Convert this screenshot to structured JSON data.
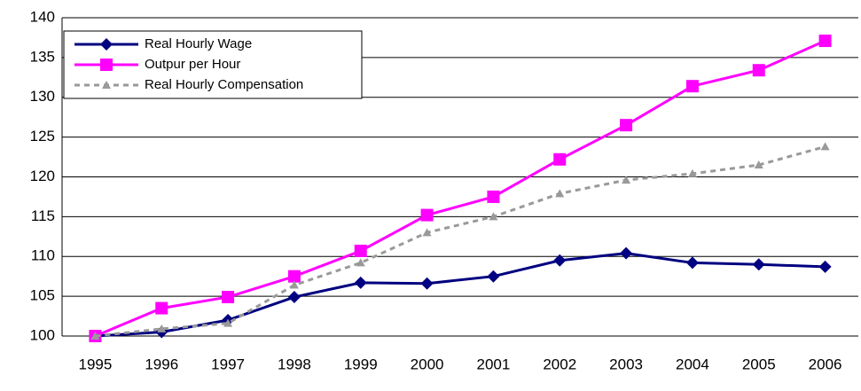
{
  "chart_data": {
    "type": "line",
    "categories": [
      "1995",
      "1996",
      "1997",
      "1998",
      "1999",
      "2000",
      "2001",
      "2002",
      "2003",
      "2004",
      "2005",
      "2006"
    ],
    "series": [
      {
        "name": "Real Hourly Wage",
        "color": "#000080",
        "marker": "diamond",
        "dashed": false,
        "values": [
          100,
          100.5,
          102.0,
          104.9,
          106.7,
          106.6,
          107.5,
          109.5,
          110.4,
          109.2,
          109.0,
          108.7
        ]
      },
      {
        "name": "Outpur per Hour",
        "color": "#ff00ff",
        "marker": "square",
        "dashed": false,
        "values": [
          100,
          103.5,
          104.9,
          107.5,
          110.7,
          115.2,
          117.5,
          122.2,
          126.5,
          131.4,
          133.4,
          137.1
        ]
      },
      {
        "name": "Real Hourly Compensation",
        "color": "#999999",
        "marker": "triangle",
        "dashed": true,
        "values": [
          100,
          100.9,
          101.6,
          106.4,
          109.2,
          113.0,
          115.0,
          117.9,
          119.6,
          120.4,
          121.5,
          123.8
        ]
      }
    ],
    "ylim": [
      100,
      140
    ],
    "yticks": [
      100,
      105,
      110,
      115,
      120,
      125,
      130,
      135,
      140
    ],
    "grid": true,
    "legend": "top-left"
  }
}
